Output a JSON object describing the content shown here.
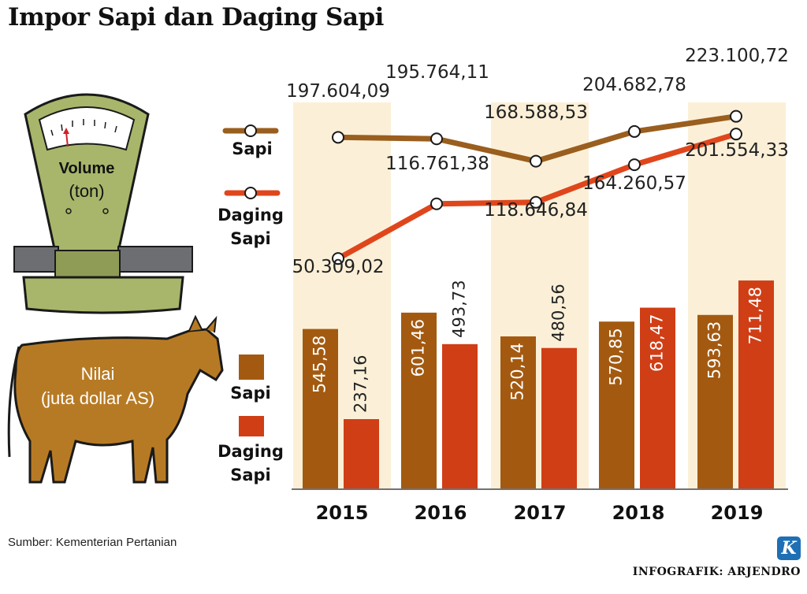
{
  "title": "Impor Sapi dan Daging Sapi",
  "source": "Sumber: Kementerian Pertanian",
  "credit": "INFOGRAFIK: ARJENDRO",
  "logo_letter": "K",
  "icons": [
    "scale-icon",
    "cow-icon",
    "kompas-logo-icon"
  ],
  "colors": {
    "sapi": "#a35a10",
    "daging_sapi": "#d03e16",
    "line_sapi": "#9a5e1e",
    "line_daging": "#e0461c",
    "column_band": "#fbf0d7",
    "scale_green": "#a7b66a",
    "cow_brown": "#b77a24"
  },
  "chart_data": [
    {
      "type": "line",
      "panel_label": "Volume (ton)",
      "x": [
        "2015",
        "2016",
        "2017",
        "2018",
        "2019"
      ],
      "series": [
        {
          "name": "Sapi",
          "values": [
            197604.09,
            195764.11,
            168588.53,
            204682.78,
            223100.72
          ],
          "labels": [
            "197.604,09",
            "195.764,11",
            "168.588,53",
            "204.682,78",
            "223.100,72"
          ]
        },
        {
          "name": "Daging Sapi",
          "values": [
            50309.02,
            116761.38,
            118646.84,
            164260.57,
            201554.33
          ],
          "labels": [
            "50.309,02",
            "116.761,38",
            "118.646,84",
            "164.260,57",
            "201.554,33"
          ]
        }
      ],
      "legend_position": "left"
    },
    {
      "type": "bar",
      "panel_label": "Nilai (juta dollar AS)",
      "categories": [
        "2015",
        "2016",
        "2017",
        "2018",
        "2019"
      ],
      "series": [
        {
          "name": "Sapi",
          "values": [
            545.58,
            601.46,
            520.14,
            570.85,
            593.63
          ],
          "labels": [
            "545,58",
            "601,46",
            "520,14",
            "570,85",
            "593,63"
          ]
        },
        {
          "name": "Daging Sapi",
          "values": [
            237.16,
            493.73,
            480.56,
            618.47,
            711.48
          ],
          "labels": [
            "237,16",
            "493,73",
            "480,56",
            "618,47",
            "711,48"
          ]
        }
      ],
      "legend_position": "left",
      "grid": false
    }
  ]
}
